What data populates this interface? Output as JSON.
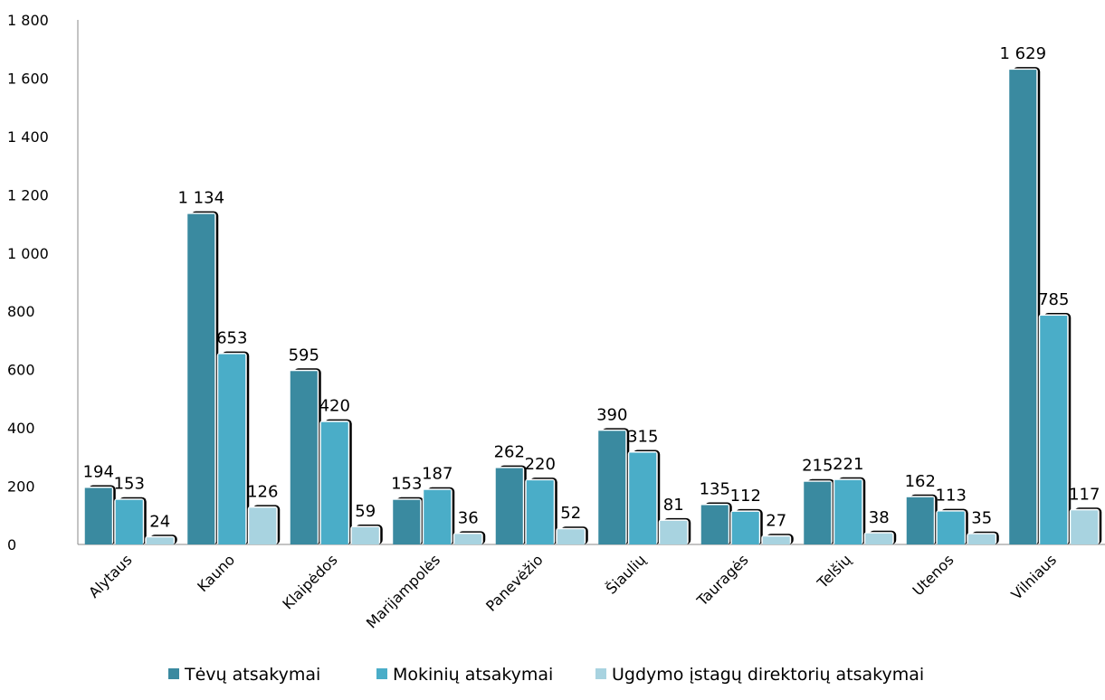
{
  "chart_data": {
    "type": "bar",
    "title": "",
    "xlabel": "",
    "ylabel": "",
    "ylim": [
      0,
      1800
    ],
    "yticks": [
      0,
      200,
      400,
      600,
      800,
      1000,
      1200,
      1400,
      1600,
      1800
    ],
    "ytick_labels": [
      "0",
      "200",
      "400",
      "600",
      "800",
      "1 000",
      "1 200",
      "1 400",
      "1 600",
      "1 800"
    ],
    "grid": false,
    "legend_position": "bottom",
    "categories": [
      "Alytaus",
      "Kauno",
      "Klaipėdos",
      "Marijampolės",
      "Panevėžio",
      "Šiaulių",
      "Tauragės",
      "Telšių",
      "Utenos",
      "Vilniaus"
    ],
    "series": [
      {
        "name": "Tėvų atsakymai",
        "color": "#3a8aa0",
        "values": [
          194,
          1134,
          595,
          153,
          262,
          390,
          135,
          215,
          162,
          1629
        ],
        "labels": [
          "194",
          "1 134",
          "595",
          "153",
          "262",
          "390",
          "135",
          "215",
          "162",
          "1 629"
        ]
      },
      {
        "name": "Mokinių atsakymai",
        "color": "#4aadc8",
        "values": [
          153,
          653,
          420,
          187,
          220,
          315,
          112,
          221,
          113,
          785
        ],
        "labels": [
          "153",
          "653",
          "420",
          "187",
          "220",
          "315",
          "112",
          "221",
          "113",
          "785"
        ]
      },
      {
        "name": "Ugdymo įstagų direktorių atsakymai",
        "color": "#a8d3e0",
        "values": [
          24,
          126,
          59,
          36,
          52,
          81,
          27,
          38,
          35,
          117
        ],
        "labels": [
          "24",
          "126",
          "59",
          "36",
          "52",
          "81",
          "27",
          "38",
          "35",
          "117"
        ]
      }
    ]
  }
}
